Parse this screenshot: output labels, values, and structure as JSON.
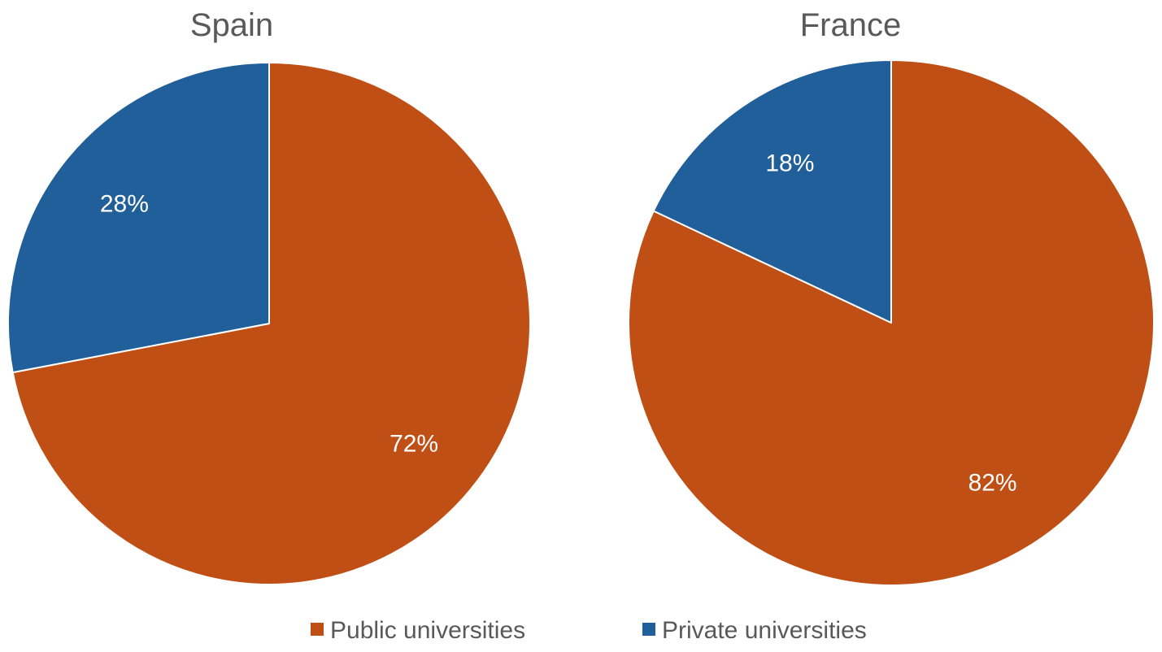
{
  "chart_data": [
    {
      "type": "pie",
      "title": "Spain",
      "slices": [
        {
          "name": "Public universities",
          "value": 72,
          "label": "72%",
          "color": "#C04F15"
        },
        {
          "name": "Private universities",
          "value": 28,
          "label": "28%",
          "color": "#215F9A"
        }
      ]
    },
    {
      "type": "pie",
      "title": "France",
      "slices": [
        {
          "name": "Public universities",
          "value": 82,
          "label": "82%",
          "color": "#C04F15"
        },
        {
          "name": "Private universities",
          "value": 18,
          "label": "18%",
          "color": "#215F9A"
        }
      ]
    }
  ],
  "legend": {
    "position": "bottom",
    "items": [
      {
        "label": "Public universities",
        "color": "#C04F15"
      },
      {
        "label": "Private universities",
        "color": "#215F9A"
      }
    ]
  }
}
